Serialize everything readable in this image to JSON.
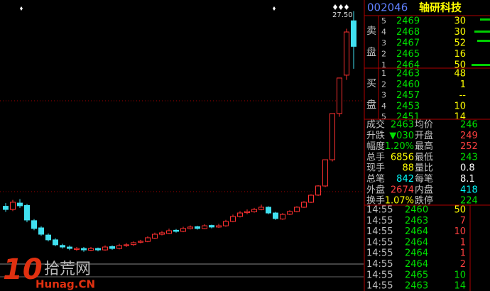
{
  "kline": {
    "type": "candlestick",
    "high_label": "27.50",
    "ylim": [
      10,
      28.2
    ],
    "candles": [
      [
        15.3,
        15.5,
        14.95,
        15.1
      ],
      [
        15.1,
        15.7,
        15.0,
        15.55
      ],
      [
        15.5,
        15.75,
        15.2,
        15.33
      ],
      [
        15.35,
        15.45,
        14.3,
        14.44
      ],
      [
        14.4,
        14.5,
        13.8,
        13.91
      ],
      [
        13.95,
        14.05,
        13.45,
        13.55
      ],
      [
        13.5,
        13.6,
        13.1,
        13.2
      ],
      [
        13.2,
        13.3,
        12.8,
        12.89
      ],
      [
        12.85,
        12.95,
        12.65,
        12.75
      ],
      [
        12.75,
        12.85,
        12.55,
        12.66
      ],
      [
        12.6,
        12.75,
        12.5,
        12.66
      ],
      [
        12.66,
        12.75,
        12.45,
        12.57
      ],
      [
        12.55,
        12.75,
        12.5,
        12.66
      ],
      [
        12.66,
        12.72,
        12.48,
        12.57
      ],
      [
        12.57,
        12.85,
        12.52,
        12.75
      ],
      [
        12.78,
        12.85,
        12.58,
        12.66
      ],
      [
        12.66,
        12.95,
        12.6,
        12.84
      ],
      [
        12.84,
        13.0,
        12.76,
        12.89
      ],
      [
        12.9,
        13.1,
        12.82,
        13.02
      ],
      [
        13.05,
        13.2,
        12.98,
        13.11
      ],
      [
        13.1,
        13.42,
        13.05,
        13.33
      ],
      [
        13.3,
        13.65,
        13.25,
        13.55
      ],
      [
        13.55,
        13.75,
        13.48,
        13.64
      ],
      [
        13.6,
        13.9,
        13.55,
        13.77
      ],
      [
        13.8,
        13.88,
        13.65,
        13.73
      ],
      [
        13.73,
        14.02,
        13.68,
        13.91
      ],
      [
        13.9,
        14.1,
        13.85,
        14.0
      ],
      [
        14.02,
        14.08,
        13.84,
        13.91
      ],
      [
        13.9,
        14.18,
        13.86,
        14.08
      ],
      [
        14.1,
        14.15,
        13.92,
        14.0
      ],
      [
        14.0,
        14.2,
        13.95,
        14.08
      ],
      [
        14.08,
        14.45,
        14.02,
        14.35
      ],
      [
        14.35,
        14.78,
        14.3,
        14.66
      ],
      [
        14.66,
        15.0,
        14.6,
        14.88
      ],
      [
        14.9,
        15.1,
        14.8,
        14.97
      ],
      [
        14.95,
        15.2,
        14.9,
        15.1
      ],
      [
        15.1,
        15.4,
        15.05,
        15.24
      ],
      [
        15.24,
        15.3,
        14.8,
        14.88
      ],
      [
        14.88,
        14.95,
        14.45,
        14.53
      ],
      [
        14.5,
        14.88,
        14.45,
        14.79
      ],
      [
        14.8,
        15.05,
        14.75,
        14.97
      ],
      [
        14.97,
        15.3,
        14.92,
        15.24
      ],
      [
        15.24,
        15.62,
        15.2,
        15.55
      ],
      [
        15.55,
        16.05,
        15.5,
        15.99
      ],
      [
        16.0,
        16.62,
        15.95,
        16.57
      ],
      [
        16.57,
        18.22,
        16.5,
        18.21
      ],
      [
        18.21,
        21.12,
        18.1,
        21.1
      ],
      [
        21.1,
        23.32,
        20.9,
        23.32
      ],
      [
        23.5,
        26.4,
        23.2,
        26.2
      ],
      [
        26.9,
        27.5,
        23.9,
        25.3
      ]
    ]
  },
  "watermark": {
    "number": "10",
    "name": "拾荒网",
    "site": "Hunag.CN"
  },
  "header": {
    "code": "002046",
    "name": "轴研科技"
  },
  "sell": {
    "label": [
      "卖",
      "盘"
    ],
    "rows": [
      [
        "5",
        "2469",
        "30"
      ],
      [
        "4",
        "2468",
        "30"
      ],
      [
        "3",
        "2467",
        "52"
      ],
      [
        "2",
        "2465",
        "16"
      ],
      [
        "1",
        "2464",
        "50"
      ]
    ]
  },
  "buy": {
    "label": [
      "买",
      "盘"
    ],
    "rows": [
      [
        "1",
        "2463",
        "48"
      ],
      [
        "2",
        "2460",
        "1"
      ],
      [
        "3",
        "2457",
        "--"
      ],
      [
        "4",
        "2453",
        "10"
      ],
      [
        "5",
        "2451",
        "14"
      ]
    ]
  },
  "stats": [
    [
      "成交",
      "2463",
      "均价",
      "246"
    ],
    [
      "升跌",
      "▼030",
      "开盘",
      "249"
    ],
    [
      "幅度",
      "1.20%",
      "最高",
      "252"
    ],
    [
      "总手",
      "6856",
      "最低",
      "243"
    ],
    [
      "现手",
      "88",
      "量比",
      "0.8"
    ],
    [
      "总笔",
      "842",
      "每笔",
      "8.1"
    ],
    [
      "外盘",
      "2674",
      "内盘",
      "418"
    ],
    [
      "换手",
      "1.07%",
      "跌停",
      "224"
    ]
  ],
  "trades": [
    [
      "14:55",
      "2460",
      "50"
    ],
    [
      "14:55",
      "2463",
      "7"
    ],
    [
      "14:55",
      "2464",
      "10"
    ],
    [
      "14:55",
      "2464",
      "1"
    ],
    [
      "14:55",
      "2464",
      "1"
    ],
    [
      "14:55",
      "2464",
      "2"
    ],
    [
      "14:55",
      "2465",
      "10"
    ],
    [
      "14:55",
      "2463",
      "14"
    ]
  ]
}
